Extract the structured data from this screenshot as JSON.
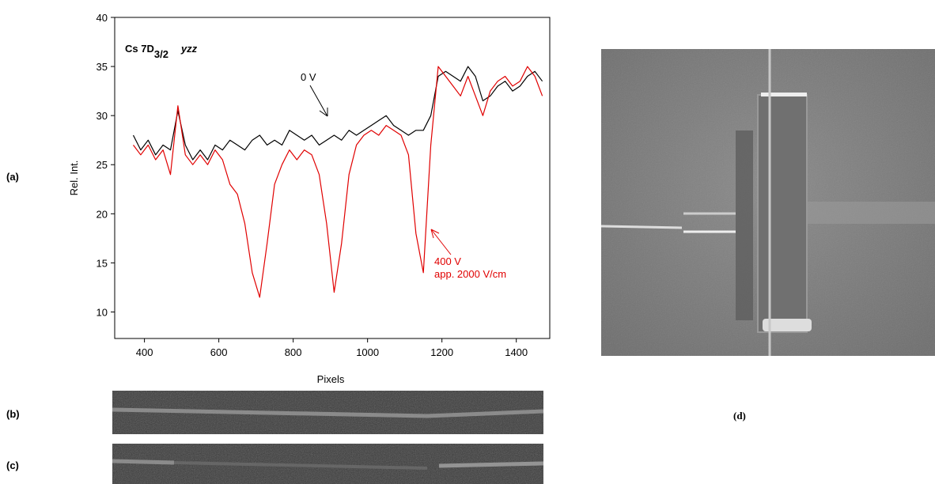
{
  "panel_labels": [
    "(a)",
    "(b)",
    "(c)",
    "(d)"
  ],
  "chart_data": {
    "type": "line",
    "title": "Cs 7D",
    "title_subscript": "3/2",
    "title_suffix": "yzz",
    "x_label": "Pixels",
    "y_label": "Rel. Int.",
    "annotations": [
      "0 V",
      "400 V",
      "app. 2000 V/cm"
    ],
    "x": [
      370,
      390,
      410,
      430,
      450,
      470,
      490,
      510,
      530,
      550,
      570,
      590,
      610,
      630,
      650,
      670,
      690,
      710,
      730,
      750,
      770,
      790,
      810,
      830,
      850,
      870,
      890,
      910,
      930,
      950,
      970,
      990,
      1010,
      1030,
      1050,
      1070,
      1090,
      1110,
      1130,
      1150,
      1170,
      1190,
      1210,
      1230,
      1250,
      1270,
      1290,
      1310,
      1330,
      1350,
      1370,
      1390,
      1410,
      1430,
      1450,
      1470
    ],
    "series": [
      {
        "name": "0 V",
        "color": "#000000",
        "values": [
          28,
          26.5,
          27.5,
          26,
          27,
          26.5,
          30.5,
          27,
          25.5,
          26.5,
          25.5,
          27,
          26.5,
          27.5,
          27,
          26.5,
          27.5,
          28,
          27,
          27.5,
          27,
          28.5,
          28,
          27.5,
          28,
          27,
          27.5,
          28,
          27.5,
          28.5,
          28,
          28.5,
          29,
          29.5,
          30,
          29,
          28.5,
          28,
          28.5,
          28.5,
          30,
          34,
          34.5,
          34,
          33.5,
          35,
          34,
          31.5,
          32,
          33,
          33.5,
          32.5,
          33,
          34,
          34.5,
          33.5
        ]
      },
      {
        "name": "400 V",
        "color": "#e00000",
        "values": [
          27,
          26,
          27,
          25.5,
          26.5,
          24,
          31,
          26,
          25,
          26,
          25,
          26.5,
          25.5,
          23,
          22,
          19,
          14,
          11.5,
          17,
          23,
          25,
          26.5,
          25.5,
          26.5,
          26,
          24,
          19,
          12,
          17,
          24,
          27,
          28,
          28.5,
          28,
          29,
          28.5,
          28,
          26,
          18,
          14,
          27,
          35,
          34,
          33,
          32,
          34,
          32,
          30,
          32.5,
          33.5,
          34,
          33,
          33.5,
          35,
          34,
          32
        ]
      }
    ],
    "xlim": [
      320,
      1490
    ],
    "ylim": [
      7.3,
      40
    ],
    "xticks": [
      400,
      600,
      800,
      1000,
      1200,
      1400
    ],
    "yticks": [
      10,
      15,
      20,
      25,
      30,
      35,
      40
    ]
  }
}
